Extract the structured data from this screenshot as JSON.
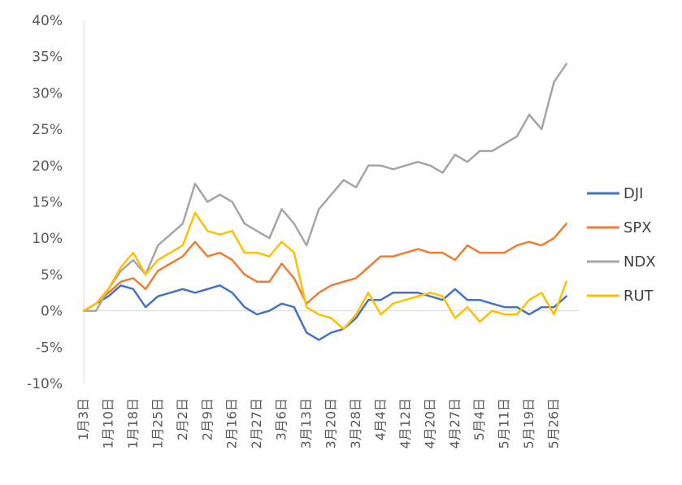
{
  "chart_data": {
    "type": "line",
    "title": "",
    "xlabel": "",
    "ylabel": "",
    "ylim": [
      -10,
      40
    ],
    "y_tick_values": [
      -10,
      -5,
      0,
      5,
      10,
      15,
      20,
      25,
      30,
      35,
      40
    ],
    "y_tick_labels": [
      "-10%",
      "-5%",
      "0%",
      "5%",
      "10%",
      "15%",
      "20%",
      "25%",
      "30%",
      "35%",
      "40%"
    ],
    "x_tick_labels": [
      "1月3日",
      "1月10日",
      "1月18日",
      "1月25日",
      "2月2日",
      "2月9日",
      "2月16日",
      "2月27日",
      "3月6日",
      "3月13日",
      "3月20日",
      "3月28日",
      "4月4日",
      "4月12日",
      "4月20日",
      "4月27日",
      "5月4日",
      "5月11日",
      "5月19日",
      "5月26日"
    ],
    "grid": false,
    "legend_position": "right",
    "colors": {
      "DJI": "#4472C4",
      "SPX": "#ED7D31",
      "NDX": "#A5A5A5",
      "RUT": "#FFC000",
      "axis": "#D9D9D9",
      "text": "#595959"
    },
    "series": [
      {
        "name": "DJI",
        "x": [
          0,
          0.5,
          1,
          1.5,
          2,
          2.5,
          3,
          3.5,
          4,
          4.5,
          5,
          5.5,
          6,
          6.5,
          7,
          7.5,
          8,
          8.5,
          9,
          9.5,
          10,
          10.5,
          11,
          11.5,
          12,
          12.5,
          13,
          13.5,
          14,
          14.5,
          15,
          15.5,
          16,
          16.5,
          17,
          17.5,
          18,
          18.5,
          19,
          19.5
        ],
        "values": [
          0,
          1.0,
          2.0,
          3.5,
          3.0,
          0.5,
          2.0,
          2.5,
          3.0,
          2.5,
          3.0,
          3.5,
          2.5,
          0.5,
          -0.5,
          0,
          1.0,
          0.5,
          -3.0,
          -4.0,
          -3.0,
          -2.5,
          -1.0,
          1.5,
          1.5,
          2.5,
          2.5,
          2.5,
          2.0,
          1.5,
          3.0,
          1.5,
          1.5,
          1.0,
          0.5,
          0.5,
          -0.5,
          0.5,
          0.5,
          2.0
        ]
      },
      {
        "name": "SPX",
        "x": [
          0,
          0.5,
          1,
          1.5,
          2,
          2.5,
          3,
          3.5,
          4,
          4.5,
          5,
          5.5,
          6,
          6.5,
          7,
          7.5,
          8,
          8.5,
          9,
          9.5,
          10,
          10.5,
          11,
          11.5,
          12,
          12.5,
          13,
          13.5,
          14,
          14.5,
          15,
          15.5,
          16,
          16.5,
          17,
          17.5,
          18,
          18.5,
          19,
          19.5
        ],
        "values": [
          0,
          1.0,
          2.5,
          4.0,
          4.5,
          3.0,
          5.5,
          6.5,
          7.5,
          9.5,
          7.5,
          8.0,
          7.0,
          5.0,
          4.0,
          4.0,
          6.5,
          4.5,
          1.0,
          2.5,
          3.5,
          4.0,
          4.5,
          6.0,
          7.5,
          7.5,
          8.0,
          8.5,
          8.0,
          8.0,
          7.0,
          9.0,
          8.0,
          8.0,
          8.0,
          9.0,
          9.5,
          9.0,
          10.0,
          12.0
        ]
      },
      {
        "name": "NDX",
        "x": [
          0,
          0.5,
          1,
          1.5,
          2,
          2.5,
          3,
          3.5,
          4,
          4.5,
          5,
          5.5,
          6,
          6.5,
          7,
          7.5,
          8,
          8.5,
          9,
          9.5,
          10,
          10.5,
          11,
          11.5,
          12,
          12.5,
          13,
          13.5,
          14,
          14.5,
          15,
          15.5,
          16,
          16.5,
          17,
          17.5,
          18,
          18.5,
          19,
          19.5
        ],
        "values": [
          0,
          0,
          3.0,
          5.5,
          7.0,
          5.0,
          9.0,
          10.5,
          12.0,
          17.5,
          15.0,
          16.0,
          15.0,
          12.0,
          11.0,
          10.0,
          14.0,
          12.0,
          9.0,
          14.0,
          16.0,
          18.0,
          17.0,
          20.0,
          20.0,
          19.5,
          20.0,
          20.5,
          20.0,
          19.0,
          21.5,
          20.5,
          22.0,
          22.0,
          23.0,
          24.0,
          27.0,
          25.0,
          31.5,
          34.0
        ]
      },
      {
        "name": "RUT",
        "x": [
          0,
          0.5,
          1,
          1.5,
          2,
          2.5,
          3,
          3.5,
          4,
          4.5,
          5,
          5.5,
          6,
          6.5,
          7,
          7.5,
          8,
          8.5,
          9,
          9.5,
          10,
          10.5,
          11,
          11.5,
          12,
          12.5,
          13,
          13.5,
          14,
          14.5,
          15,
          15.5,
          16,
          16.5,
          17,
          17.5,
          18,
          18.5,
          19,
          19.5
        ],
        "values": [
          0,
          1.0,
          3.0,
          6.0,
          8.0,
          5.0,
          7.0,
          8.0,
          9.0,
          13.5,
          11.0,
          10.5,
          11.0,
          8.0,
          8.0,
          7.5,
          9.5,
          8.0,
          0.5,
          -0.5,
          -1.0,
          -2.5,
          -0.5,
          2.5,
          -0.5,
          1.0,
          1.5,
          2.0,
          2.5,
          2.0,
          -1.0,
          0.5,
          -1.5,
          0,
          -0.5,
          -0.5,
          1.5,
          2.5,
          -0.5,
          4.0
        ]
      }
    ]
  }
}
